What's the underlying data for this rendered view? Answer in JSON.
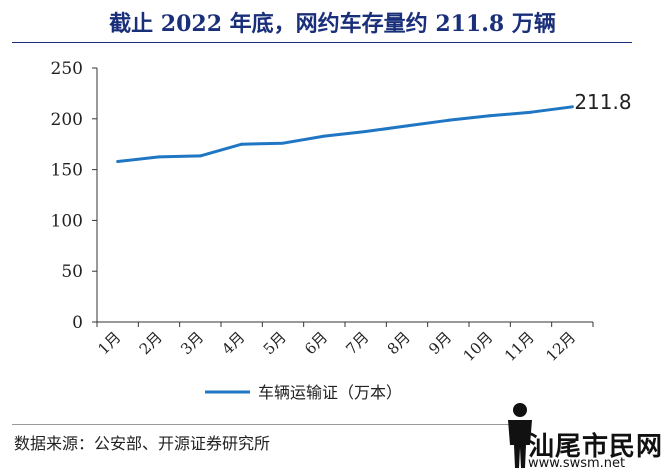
{
  "header": {
    "title": "截止 2022 年底，网约车存量约 211.8 万辆"
  },
  "footer": {
    "source": "数据来源：公安部、开源证券研究所"
  },
  "watermark": {
    "text": "汕尾市民网",
    "url": "www.swsm.net"
  },
  "chart_data": {
    "type": "line",
    "title": "截止 2022 年底，网约车存量约 211.8 万辆",
    "categories": [
      "1月",
      "2月",
      "3月",
      "4月",
      "5月",
      "6月",
      "7月",
      "8月",
      "9月",
      "10月",
      "11月",
      "12月"
    ],
    "series": [
      {
        "name": "车辆运输证（万本）",
        "values": [
          158,
          162.5,
          163.5,
          175,
          176,
          183,
          187.5,
          193,
          198.5,
          203,
          206.5,
          211.8
        ],
        "color": "#1f77c4"
      }
    ],
    "ylim": [
      0,
      250
    ],
    "yticks": [
      "0",
      "50",
      "100",
      "150",
      "200",
      "250"
    ],
    "annotations": [
      {
        "text": "211.8",
        "category": "12月",
        "value": 211.8
      }
    ],
    "legend": "bottom",
    "grid": false,
    "xlabel": "",
    "ylabel": ""
  }
}
